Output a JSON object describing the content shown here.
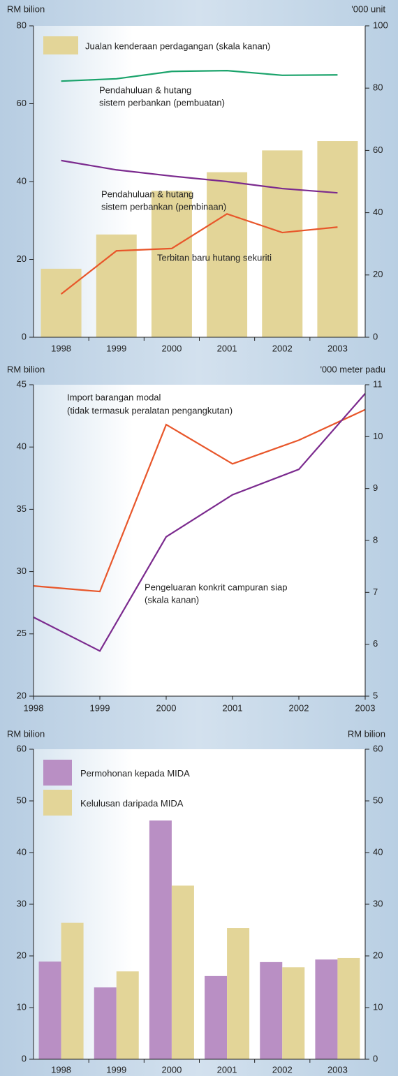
{
  "chart_data": [
    {
      "type": "combo",
      "y_label": "RM bilion",
      "y2_label": "'000 unit",
      "categories": [
        "1998",
        "1999",
        "2000",
        "2001",
        "2002",
        "2003"
      ],
      "ylim": [
        0,
        80
      ],
      "yticks": [
        0,
        20,
        40,
        60,
        80
      ],
      "y2lim": [
        0,
        100
      ],
      "y2ticks": [
        0,
        20,
        40,
        60,
        80,
        100
      ],
      "legend": "top-left",
      "series": [
        {
          "name": "Jualan kenderaan perdagangan (skala kanan)",
          "type": "bar",
          "axis": "y2",
          "color": "#e3d598",
          "values": [
            22,
            33,
            47,
            53,
            60,
            63
          ]
        },
        {
          "type": "line",
          "color": "#1aa36b",
          "values": [
            65.8,
            66.4,
            68.3,
            68.5,
            67.3,
            67.4
          ]
        },
        {
          "type": "line",
          "color": "#7b2a8e",
          "values": [
            45.4,
            43.0,
            41.4,
            40.0,
            38.2,
            37.1
          ]
        },
        {
          "type": "line",
          "color": "#e8562a",
          "values": [
            11.1,
            22.2,
            22.8,
            31.7,
            26.9,
            28.3
          ]
        }
      ],
      "annotations": [
        "Pendahuluan & hutang",
        "sistem perbankan (pembuatan)",
        "Pendahuluan & hutang",
        "sistem perbankan (pembinaan)",
        "Terbitan baru hutang sekuriti"
      ]
    },
    {
      "type": "line",
      "y_label": "RM bilion",
      "y2_label": "'000 meter padu",
      "x": [
        1998,
        1999,
        2000,
        2001,
        2002,
        2003
      ],
      "xlim": [
        1998,
        2003
      ],
      "xticks": [
        1998,
        1999,
        2000,
        2001,
        2002,
        2003
      ],
      "ylim": [
        20,
        45
      ],
      "yticks": [
        20,
        25,
        30,
        35,
        40,
        45
      ],
      "y2lim": [
        5,
        11
      ],
      "y2ticks": [
        5,
        6,
        7,
        8,
        9,
        10,
        11
      ],
      "series": [
        {
          "color": "#e8562a",
          "values": [
            28.85,
            28.4,
            41.8,
            38.65,
            40.55,
            43.0
          ]
        },
        {
          "color": "#7b2a8e",
          "axis": "y2",
          "values": [
            6.52,
            5.87,
            8.07,
            8.88,
            9.37,
            10.83
          ]
        }
      ],
      "annotations": [
        "Import barangan modal",
        "(tidak termasuk peralatan pengangkutan)",
        "Pengeluaran konkrit campuran siap",
        "(skala kanan)"
      ]
    },
    {
      "type": "bar",
      "y_label": "RM bilion",
      "y2_label": "RM bilion",
      "categories": [
        "1998",
        "1999",
        "2000",
        "2001",
        "2002",
        "2003"
      ],
      "ylim": [
        0,
        60
      ],
      "yticks": [
        0,
        10,
        20,
        30,
        40,
        50,
        60
      ],
      "y2lim": [
        0,
        60
      ],
      "y2ticks": [
        0,
        10,
        20,
        30,
        40,
        50,
        60
      ],
      "legend": "top-left",
      "series": [
        {
          "name": "Permohonan kepada MIDA",
          "color": "#b98fc4",
          "values": [
            18.9,
            13.9,
            46.2,
            16.1,
            18.8,
            19.3
          ]
        },
        {
          "name": "Kelulusan daripada MIDA",
          "color": "#e3d598",
          "values": [
            26.4,
            17.0,
            33.6,
            25.4,
            17.8,
            19.6
          ]
        }
      ]
    }
  ]
}
